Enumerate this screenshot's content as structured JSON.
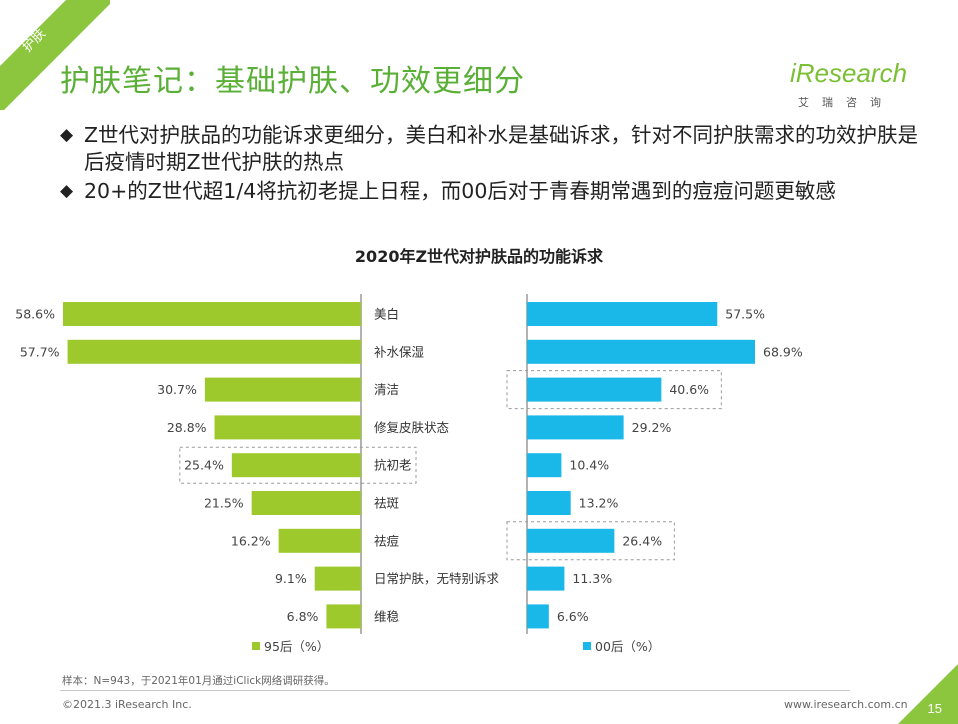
{
  "header": {
    "corner_tag": "护肤",
    "title": "护肤笔记：基础护肤、功效更细分",
    "logo_brand": "iResearch",
    "logo_sub": "艾瑞咨询"
  },
  "bullets": [
    "Z世代对护肤品的功能诉求更细分，美白和补水是基础诉求，针对不同护肤需求的功效护肤是后疫情时期Z世代护肤的热点",
    "20+的Z世代超1/4将抗初老提上日程，而00后对于青春期常遇到的痘痘问题更敏感"
  ],
  "chart_data": {
    "type": "bar",
    "title": "2020年Z世代对护肤品的功能诉求",
    "categories": [
      "美白",
      "补水保湿",
      "清洁",
      "修复皮肤状态",
      "抗初老",
      "祛斑",
      "祛痘",
      "日常护肤，无特别诉求",
      "维稳"
    ],
    "series": [
      {
        "name": "95后（%）",
        "color": "#9dc92d",
        "values": [
          58.6,
          57.7,
          30.7,
          28.8,
          25.4,
          21.5,
          16.2,
          9.1,
          6.8
        ],
        "highlight": [
          4
        ]
      },
      {
        "name": "00后（%）",
        "color": "#1ab8e8",
        "values": [
          57.5,
          68.9,
          40.6,
          29.2,
          10.4,
          13.2,
          26.4,
          11.3,
          6.6
        ],
        "highlight": [
          2,
          6
        ]
      }
    ],
    "value_suffix": "%"
  },
  "footer": {
    "note": "样本：N=943，于2021年01月通过iClick网络调研获得。",
    "copyright": "©2021.3 iResearch Inc.",
    "site": "www.iresearch.com.cn",
    "page": "15"
  },
  "colors": {
    "accent": "#8cc63f",
    "title": "#5aaf36",
    "green_bar": "#9dc92d",
    "blue_bar": "#1ab8e8"
  }
}
